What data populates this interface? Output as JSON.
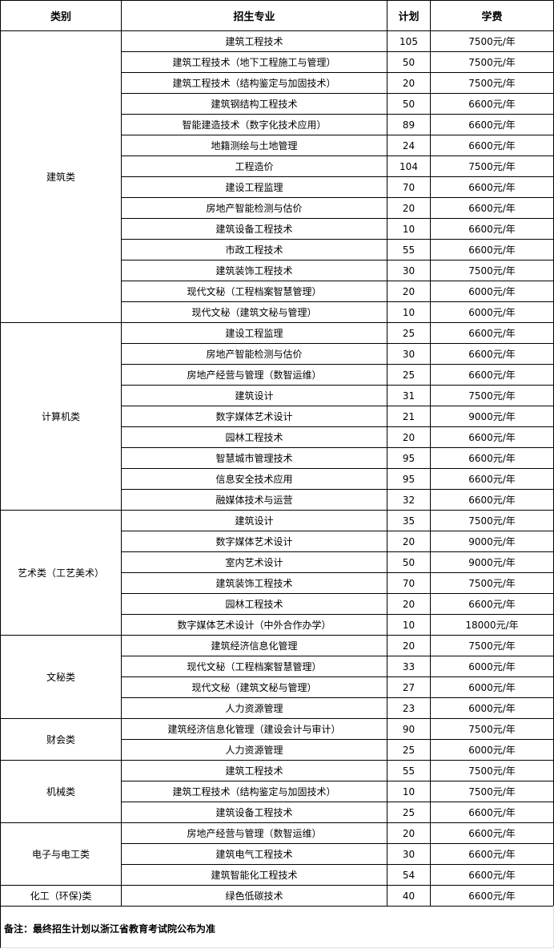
{
  "headers": [
    "类别",
    "招生专业",
    "计划",
    "学费"
  ],
  "groups": [
    {
      "category": "建筑类",
      "rows": [
        [
          "建筑工程技术",
          "105",
          "7500元/年"
        ],
        [
          "建筑工程技术（地下工程施工与管理）",
          "50",
          "7500元/年"
        ],
        [
          "建筑工程技术（结构鉴定与加固技术）",
          "20",
          "7500元/年"
        ],
        [
          "建筑钢结构工程技术",
          "50",
          "6600元/年"
        ],
        [
          "智能建造技术（数字化技术应用）",
          "89",
          "6600元/年"
        ],
        [
          "地籍测绘与土地管理",
          "24",
          "6600元/年"
        ],
        [
          "工程造价",
          "104",
          "7500元/年"
        ],
        [
          "建设工程监理",
          "70",
          "6600元/年"
        ],
        [
          "房地产智能检测与估价",
          "20",
          "6600元/年"
        ],
        [
          "建筑设备工程技术",
          "10",
          "6600元/年"
        ],
        [
          "市政工程技术",
          "55",
          "6600元/年"
        ],
        [
          "建筑装饰工程技术",
          "30",
          "7500元/年"
        ],
        [
          "现代文秘（工程档案智慧管理）",
          "20",
          "6000元/年"
        ],
        [
          "现代文秘（建筑文秘与管理）",
          "10",
          "6000元/年"
        ]
      ]
    },
    {
      "category": "计算机类",
      "rows": [
        [
          "建设工程监理",
          "25",
          "6600元/年"
        ],
        [
          "房地产智能检测与估价",
          "30",
          "6600元/年"
        ],
        [
          "房地产经营与管理（数智运维）",
          "25",
          "6600元/年"
        ],
        [
          "建筑设计",
          "31",
          "7500元/年"
        ],
        [
          "数字媒体艺术设计",
          "21",
          "9000元/年"
        ],
        [
          "园林工程技术",
          "20",
          "6600元/年"
        ],
        [
          "智慧城市管理技术",
          "95",
          "6600元/年"
        ],
        [
          "信息安全技术应用",
          "95",
          "6600元/年"
        ],
        [
          "融媒体技术与运营",
          "32",
          "6600元/年"
        ]
      ]
    },
    {
      "category": "艺术类（工艺美术）",
      "rows": [
        [
          "建筑设计",
          "35",
          "7500元/年"
        ],
        [
          "数字媒体艺术设计",
          "20",
          "9000元/年"
        ],
        [
          "室内艺术设计",
          "50",
          "9000元/年"
        ],
        [
          "建筑装饰工程技术",
          "70",
          "7500元/年"
        ],
        [
          "园林工程技术",
          "20",
          "6600元/年"
        ],
        [
          "数字媒体艺术设计（中外合作办学）",
          "10",
          "18000元/年"
        ]
      ]
    },
    {
      "category": "文秘类",
      "rows": [
        [
          "建筑经济信息化管理",
          "20",
          "7500元/年"
        ],
        [
          "现代文秘（工程档案智慧管理）",
          "33",
          "6000元/年"
        ],
        [
          "现代文秘（建筑文秘与管理）",
          "27",
          "6000元/年"
        ],
        [
          "人力资源管理",
          "23",
          "6000元/年"
        ]
      ]
    },
    {
      "category": "财会类",
      "rows": [
        [
          "建筑经济信息化管理（建设会计与审计）",
          "90",
          "7500元/年"
        ],
        [
          "人力资源管理",
          "25",
          "6000元/年"
        ]
      ]
    },
    {
      "category": "机械类",
      "rows": [
        [
          "建筑工程技术",
          "55",
          "7500元/年"
        ],
        [
          "建筑工程技术（结构鉴定与加固技术）",
          "10",
          "7500元/年"
        ],
        [
          "建筑设备工程技术",
          "25",
          "6600元/年"
        ]
      ]
    },
    {
      "category": "电子与电工类",
      "rows": [
        [
          "房地产经营与管理（数智运维）",
          "20",
          "6600元/年"
        ],
        [
          "建筑电气工程技术",
          "30",
          "6600元/年"
        ],
        [
          "建筑智能化工程技术",
          "54",
          "6600元/年"
        ]
      ]
    },
    {
      "category": "化工（环保)类",
      "rows": [
        [
          "绿色低碳技术",
          "40",
          "6600元/年"
        ]
      ]
    }
  ],
  "note": "备注：最终招生计划以浙江省教育考试院公布为准"
}
